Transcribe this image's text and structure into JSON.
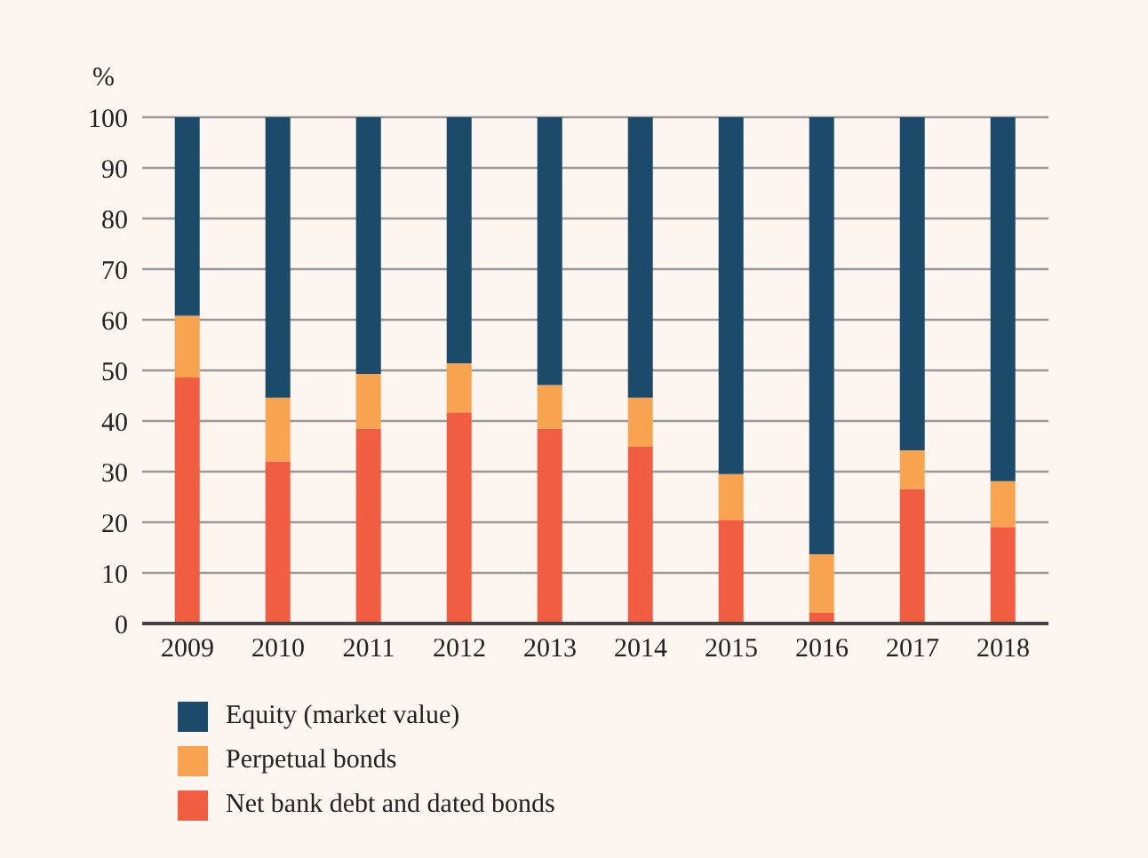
{
  "chart_data": {
    "type": "bar",
    "ylabel": "%",
    "categories": [
      "2009",
      "2010",
      "2011",
      "2012",
      "2013",
      "2014",
      "2015",
      "2016",
      "2017",
      "2018"
    ],
    "stacked": true,
    "ylim": [
      0,
      100
    ],
    "yticks": [
      0,
      10,
      20,
      30,
      40,
      50,
      60,
      70,
      80,
      90,
      100
    ],
    "grid": "y",
    "legend": "bottom left",
    "series": [
      {
        "name": "Net bank debt and dated bonds",
        "color": "#f05d40",
        "values": [
          48.6,
          32.0,
          38.5,
          41.7,
          38.5,
          34.9,
          20.5,
          2.2,
          26.6,
          19.1
        ]
      },
      {
        "name": "Perpetual bonds",
        "color": "#f8a350",
        "values": [
          12.2,
          12.6,
          10.8,
          9.7,
          8.6,
          9.7,
          9.0,
          11.5,
          7.6,
          9.0
        ]
      },
      {
        "name": "Equity (market value)",
        "color": "#1b4a6b",
        "values": [
          39.2,
          55.4,
          50.7,
          48.6,
          52.9,
          55.4,
          70.5,
          86.3,
          65.8,
          71.9
        ]
      }
    ]
  }
}
